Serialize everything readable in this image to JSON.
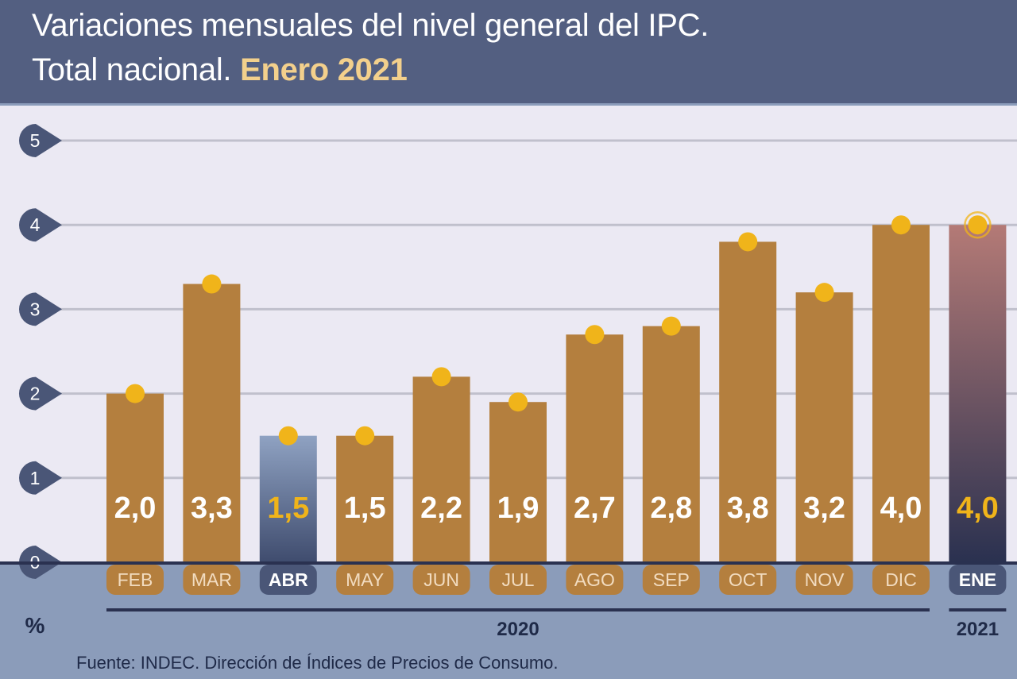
{
  "header": {
    "title_line1": "Variaciones mensuales del nivel general del IPC.",
    "title_line2_prefix": "Total nacional.",
    "title_line2_highlight": "Enero 2021"
  },
  "colors": {
    "header_bg": "#535f81",
    "title_highlight": "#f3d08c",
    "plot_bg": "#ebe9f3",
    "axis_band_bg": "#8b9cba",
    "bar": "#b47f3e",
    "highlight_bar_top": "#8fa2c2",
    "highlight_bar_bottom": "#3f4c6e",
    "latest_bar_top": "#b47a76",
    "latest_bar_bottom": "#2a3150",
    "marker": "#f0b41a",
    "value_label": "#ffffff",
    "value_label_highlight": "#f0b41a",
    "tick_badge": "#4a5677",
    "gridline": "#c0c0cc"
  },
  "chart_data": {
    "type": "bar",
    "title": "Variaciones mensuales del nivel general del IPC. Total nacional. Enero 2021",
    "ylabel": "%",
    "ylim": [
      0,
      5
    ],
    "yticks": [
      "0",
      "1",
      "2",
      "3",
      "4",
      "5"
    ],
    "grid": true,
    "categories": [
      "FEB",
      "MAR",
      "ABR",
      "MAY",
      "JUN",
      "JUL",
      "AGO",
      "SEP",
      "OCT",
      "NOV",
      "DIC",
      "ENE"
    ],
    "values": [
      2.0,
      3.3,
      1.5,
      1.5,
      2.2,
      1.9,
      2.7,
      2.8,
      3.8,
      3.2,
      4.0,
      4.0
    ],
    "value_labels": [
      "2,0",
      "3,3",
      "1,5",
      "1,5",
      "2,2",
      "1,9",
      "2,7",
      "2,8",
      "3,8",
      "3,2",
      "4,0",
      "4,0"
    ],
    "highlighted_categories": [
      "ABR",
      "ENE"
    ],
    "year_groups": [
      {
        "label": "2020",
        "categories": [
          "FEB",
          "MAR",
          "ABR",
          "MAY",
          "JUN",
          "JUL",
          "AGO",
          "SEP",
          "OCT",
          "NOV",
          "DIC"
        ]
      },
      {
        "label": "2021",
        "categories": [
          "ENE"
        ]
      }
    ]
  },
  "source": "Fuente: INDEC. Dirección de Índices de Precios de Consumo."
}
